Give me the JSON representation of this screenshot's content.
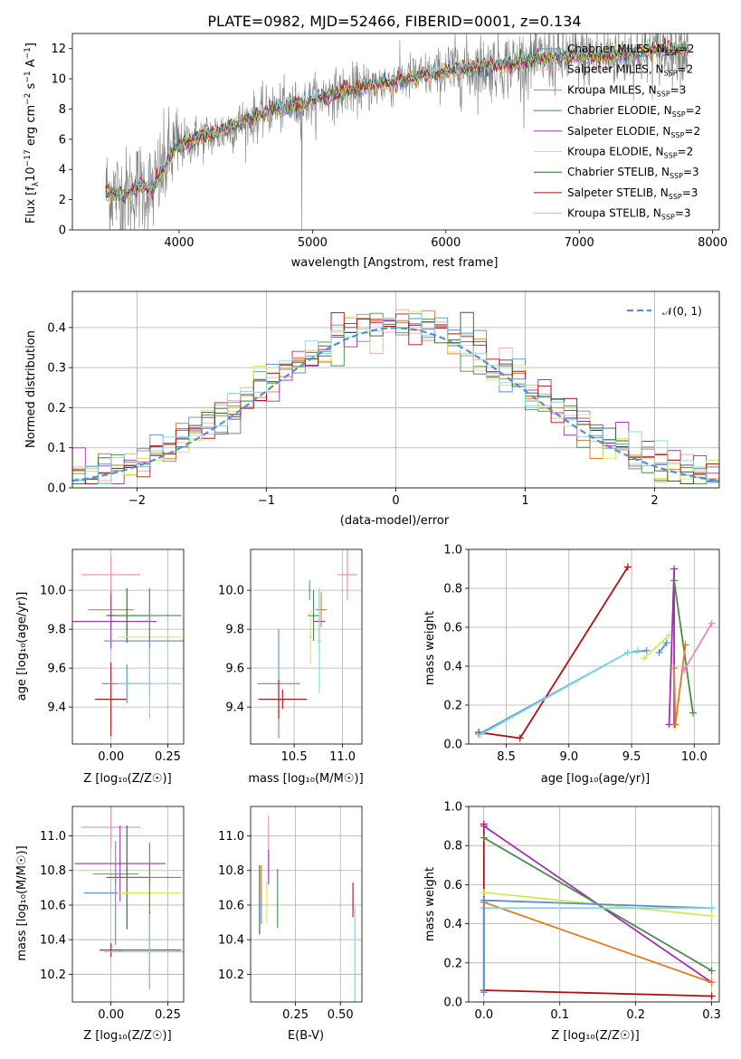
{
  "title": "PLATE=0982, MJD=52466, FIBERID=0001, z=0.134",
  "colors": {
    "observed": "#808080",
    "gaussian": "#5b8bd0",
    "grid": "#b0b0b0",
    "models": [
      "#5b8bd0",
      "#e6b0a0",
      "#e07b20",
      "#4a8a4a",
      "#a030b0",
      "#d4e858",
      "#2e5e2e",
      "#b01010",
      "#80d8e0",
      "#e88ab8"
    ]
  },
  "legend": [
    {
      "label": "Chabrier MILES, N",
      "sub": "SSP",
      "suffix": "=2",
      "color": "#5b8bd0"
    },
    {
      "label": "Salpeter MILES, N",
      "sub": "SSP",
      "suffix": "=2",
      "color": "#e6b0a0"
    },
    {
      "label": "Kroupa MILES, N",
      "sub": "SSP",
      "suffix": "=3",
      "color": "#e07b20"
    },
    {
      "label": "Chabrier ELODIE, N",
      "sub": "SSP",
      "suffix": "=2",
      "color": "#4a8a4a"
    },
    {
      "label": "Salpeter ELODIE, N",
      "sub": "SSP",
      "suffix": "=2",
      "color": "#a030b0"
    },
    {
      "label": "Kroupa ELODIE, N",
      "sub": "SSP",
      "suffix": "=2",
      "color": "#d4e858"
    },
    {
      "label": "Chabrier STELIB, N",
      "sub": "SSP",
      "suffix": "=3",
      "color": "#2e5e2e"
    },
    {
      "label": "Salpeter STELIB, N",
      "sub": "SSP",
      "suffix": "=3",
      "color": "#b01010"
    },
    {
      "label": "Kroupa STELIB, N",
      "sub": "SSP",
      "suffix": "=3",
      "color": "#80d8e0"
    }
  ],
  "chart_data": [
    {
      "type": "line",
      "panel": "spectrum",
      "xlabel": "wavelength [Angstrom, rest frame]",
      "ylabel": "Flux [fλ10⁻¹⁷ erg cm⁻² s⁻¹ A⁻¹]",
      "xlim": [
        3200,
        8050
      ],
      "ylim": [
        0,
        13
      ],
      "xticks": [
        "4000",
        "5000",
        "6000",
        "7000",
        "8000"
      ],
      "yticks": [
        "0",
        "2",
        "4",
        "6",
        "8",
        "10",
        "12"
      ],
      "grid": false,
      "legend_position": "right",
      "continuum": {
        "x": [
          3450,
          3600,
          3700,
          3800,
          3950,
          4100,
          4300,
          4500,
          4700,
          4900,
          5100,
          5300,
          5500,
          5700,
          5900,
          6100,
          6300,
          6500,
          6700,
          6900,
          7100,
          7300,
          7500,
          7700,
          7820
        ],
        "y": [
          2.6,
          2.3,
          2.9,
          2.6,
          5.2,
          6.0,
          6.4,
          7.2,
          8.0,
          8.2,
          8.9,
          9.3,
          9.6,
          10.0,
          10.3,
          10.6,
          10.8,
          11.0,
          11.3,
          11.4,
          11.5,
          11.6,
          11.8,
          12.0,
          12.0
        ]
      }
    },
    {
      "type": "line",
      "panel": "residual_distribution",
      "xlabel": "(data-model)/error",
      "ylabel": "Normed distribution",
      "xlim": [
        -2.5,
        2.5
      ],
      "ylim": [
        0,
        0.49
      ],
      "xticks": [
        "−2",
        "−1",
        "0",
        "1",
        "2"
      ],
      "yticks": [
        "0.0",
        "0.1",
        "0.2",
        "0.3",
        "0.4"
      ],
      "grid": true,
      "legend_position": "top-right",
      "legend_label": "𝒩(0, 1)",
      "gaussian": {
        "mu": 0,
        "sigma": 1
      },
      "hist_edges_start": -2.5,
      "hist_bin": 0.1
    },
    {
      "type": "scatter",
      "panel": "age_vs_Z",
      "xlabel": "Z [log₁₀(Z/Z☉)]",
      "ylabel": "age  [log₁₀(age/yr)]",
      "xlim": [
        -0.17,
        0.32
      ],
      "ylim": [
        9.21,
        10.21
      ],
      "xticks": [
        "0.00",
        "0.25"
      ],
      "xtick_values": [
        0,
        0.25
      ],
      "yticks": [
        "9.4",
        "9.6",
        "9.8",
        "10.0"
      ],
      "ytick_values": [
        9.4,
        9.6,
        9.8,
        10.0
      ],
      "points": [
        {
          "x": 0.0,
          "y": 10.08,
          "xe": 0.13,
          "ye": 0.1,
          "c": 9
        },
        {
          "x": 0.0,
          "y": 9.44,
          "xe": 0.07,
          "ye": 0.19,
          "c": 7
        },
        {
          "x": 0.0,
          "y": 9.9,
          "xe": 0.1,
          "ye": 0.1,
          "c": 2
        },
        {
          "x": 0.0,
          "y": 9.84,
          "xe": 0.2,
          "ye": 0.14,
          "c": 4
        },
        {
          "x": 0.07,
          "y": 9.87,
          "xe": 0.09,
          "ye": 0.14,
          "c": 6
        },
        {
          "x": 0.07,
          "y": 9.52,
          "xe": 0.11,
          "ye": 0.1,
          "c": 0
        },
        {
          "x": 0.17,
          "y": 9.76,
          "xe": 0.14,
          "ye": 0.1,
          "c": 5
        },
        {
          "x": 0.17,
          "y": 9.87,
          "xe": 0.14,
          "ye": 0.14,
          "c": 3
        },
        {
          "x": 0.17,
          "y": 9.74,
          "xe": 0.2,
          "ye": 0.27,
          "c": 0
        },
        {
          "x": 0.17,
          "y": 9.52,
          "xe": 0.14,
          "ye": 0.18,
          "c": 8
        }
      ]
    },
    {
      "type": "scatter",
      "panel": "age_vs_mass",
      "xlabel": "mass [log₁₀(M/M☉)]",
      "ylabel": "",
      "xlim": [
        10.05,
        11.2
      ],
      "ylim": [
        9.21,
        10.21
      ],
      "xticks": [
        "10.5",
        "11.0"
      ],
      "xtick_values": [
        10.5,
        11.0
      ],
      "yticks": [
        "9.4",
        "9.6",
        "9.8",
        "10.0"
      ],
      "ytick_values": [
        9.4,
        9.6,
        9.8,
        10.0
      ],
      "points": [
        {
          "x": 10.34,
          "y": 9.52,
          "xe": 0.22,
          "ye": 0.28,
          "c": 0
        },
        {
          "x": 10.34,
          "y": 9.44,
          "xe": 0.03,
          "ye": 0.1,
          "c": 7
        },
        {
          "x": 10.38,
          "y": 9.44,
          "xe": 0.25,
          "ye": 0.05,
          "c": 7
        },
        {
          "x": 10.66,
          "y": 10.0,
          "xe": 0.01,
          "ye": 0.05,
          "c": 0
        },
        {
          "x": 10.7,
          "y": 9.87,
          "xe": 0.06,
          "ye": 0.13,
          "c": 3
        },
        {
          "x": 10.76,
          "y": 9.84,
          "xe": 0.06,
          "ye": 0.16,
          "c": 4
        },
        {
          "x": 10.78,
          "y": 9.9,
          "xe": 0.06,
          "ye": 0.09,
          "c": 2
        },
        {
          "x": 10.67,
          "y": 9.76,
          "xe": 0.02,
          "ye": 0.14,
          "c": 5
        },
        {
          "x": 10.76,
          "y": 9.74,
          "xe": 0.02,
          "ye": 0.27,
          "c": 8
        },
        {
          "x": 11.05,
          "y": 10.08,
          "xe": 0.1,
          "ye": 0.13,
          "c": 9
        }
      ]
    },
    {
      "type": "line",
      "panel": "mass_weight_vs_age",
      "xlabel": "age  [log₁₀(age/yr)]",
      "ylabel": "mass weight",
      "xlim": [
        8.2,
        10.2
      ],
      "ylim": [
        0,
        1.0
      ],
      "xticks": [
        "8.5",
        "9.0",
        "9.5",
        "10.0"
      ],
      "xtick_values": [
        8.5,
        9.0,
        9.5,
        10.0
      ],
      "yticks": [
        "0.0",
        "0.2",
        "0.4",
        "0.6",
        "0.8",
        "1.0"
      ],
      "ytick_values": [
        0,
        0.2,
        0.4,
        0.6,
        0.8,
        1.0
      ],
      "grid": true,
      "series": [
        {
          "c": 7,
          "x": [
            8.28,
            8.61,
            9.47
          ],
          "y": [
            0.06,
            0.03,
            0.91
          ]
        },
        {
          "c": 0,
          "x": [
            8.28,
            9.47,
            9.62
          ],
          "y": [
            0.05,
            0.47,
            0.48
          ]
        },
        {
          "c": 8,
          "x": [
            8.3,
            9.47,
            9.55
          ],
          "y": [
            0.05,
            0.47,
            0.48
          ]
        },
        {
          "c": 5,
          "x": [
            9.6,
            9.8
          ],
          "y": [
            0.44,
            0.56
          ]
        },
        {
          "c": 0,
          "x": [
            9.72,
            9.78
          ],
          "y": [
            0.47,
            0.52
          ]
        },
        {
          "c": 4,
          "x": [
            9.8,
            9.84,
            9.84
          ],
          "y": [
            0.1,
            0.9,
            0.1
          ]
        },
        {
          "c": 3,
          "x": [
            9.84,
            9.99
          ],
          "y": [
            0.84,
            0.16
          ]
        },
        {
          "c": 2,
          "x": [
            9.84,
            9.85,
            9.93
          ],
          "y": [
            0.39,
            0.1,
            0.51
          ]
        },
        {
          "c": 9,
          "x": [
            9.92,
            10.14
          ],
          "y": [
            0.38,
            0.62
          ]
        }
      ]
    },
    {
      "type": "scatter",
      "panel": "mass_vs_Z",
      "xlabel": "Z [log₁₀(Z/Z☉)]",
      "ylabel": "mass [log₁₀(M/M☉)]",
      "xlim": [
        -0.17,
        0.32
      ],
      "ylim": [
        10.04,
        11.17
      ],
      "xticks": [
        "0.00",
        "0.25"
      ],
      "xtick_values": [
        0,
        0.25
      ],
      "yticks": [
        "10.2",
        "10.4",
        "10.6",
        "10.8",
        "11.0"
      ],
      "ytick_values": [
        10.2,
        10.4,
        10.6,
        10.8,
        11.0
      ],
      "points": [
        {
          "x": 0.0,
          "y": 11.05,
          "xe": 0.13,
          "ye": 0.12,
          "c": 9
        },
        {
          "x": 0.0,
          "y": 10.34,
          "xe": 0.05,
          "ye": 0.04,
          "c": 7
        },
        {
          "x": 0.02,
          "y": 10.78,
          "xe": 0.1,
          "ye": 0.06,
          "c": 2
        },
        {
          "x": 0.04,
          "y": 10.84,
          "xe": 0.2,
          "ye": 0.22,
          "c": 4
        },
        {
          "x": 0.07,
          "y": 10.76,
          "xe": 0.09,
          "ye": 0.3,
          "c": 6
        },
        {
          "x": 0.02,
          "y": 10.67,
          "xe": 0.14,
          "ye": 0.3,
          "c": 0
        },
        {
          "x": 0.17,
          "y": 10.67,
          "xe": 0.14,
          "ye": 0.17,
          "c": 5
        },
        {
          "x": 0.17,
          "y": 10.76,
          "xe": 0.14,
          "ye": 0.2,
          "c": 3
        },
        {
          "x": 0.17,
          "y": 10.34,
          "xe": 0.14,
          "ye": 0.22,
          "c": 6
        },
        {
          "x": 0.17,
          "y": 10.33,
          "xe": 0.2,
          "ye": 0.22,
          "c": 8
        }
      ]
    },
    {
      "type": "scatter",
      "panel": "mass_vs_EBV",
      "xlabel": "E(B-V)",
      "ylabel": "",
      "xlim": [
        0.0,
        0.62
      ],
      "ylim": [
        10.04,
        11.17
      ],
      "xticks": [
        "0.25",
        "0.50"
      ],
      "xtick_values": [
        0.25,
        0.5
      ],
      "yticks": [
        "10.2",
        "10.4",
        "10.6",
        "10.8",
        "11.0"
      ],
      "ytick_values": [
        10.2,
        10.4,
        10.6,
        10.8,
        11.0
      ],
      "points": [
        {
          "x": 0.05,
          "y": 10.63,
          "xe": 0,
          "ye": 0.2,
          "c": 6
        },
        {
          "x": 0.06,
          "y": 10.62,
          "xe": 0,
          "ye": 0.13,
          "c": 0
        },
        {
          "x": 0.06,
          "y": 10.73,
          "xe": 0,
          "ye": 0.1,
          "c": 2
        },
        {
          "x": 0.09,
          "y": 10.62,
          "xe": 0,
          "ye": 0.12,
          "c": 5
        },
        {
          "x": 0.1,
          "y": 10.95,
          "xe": 0,
          "ye": 0.17,
          "c": 9
        },
        {
          "x": 0.1,
          "y": 10.82,
          "xe": 0,
          "ye": 0.1,
          "c": 4
        },
        {
          "x": 0.15,
          "y": 10.64,
          "xe": 0,
          "ye": 0.17,
          "c": 3
        },
        {
          "x": 0.57,
          "y": 10.63,
          "xe": 0,
          "ye": 0.1,
          "c": 7
        },
        {
          "x": 0.58,
          "y": 10.3,
          "xe": 0,
          "ye": 0.3,
          "c": 0
        },
        {
          "x": 0.58,
          "y": 10.3,
          "xe": 0,
          "ye": 0.3,
          "c": 8
        }
      ]
    },
    {
      "type": "line",
      "panel": "mass_weight_vs_Z",
      "xlabel": "Z [log₁₀(Z/Z☉)]",
      "ylabel": "mass weight",
      "xlim": [
        -0.02,
        0.31
      ],
      "ylim": [
        0,
        1.0
      ],
      "xticks": [
        "0.0",
        "0.1",
        "0.2",
        "0.3"
      ],
      "xtick_values": [
        0,
        0.1,
        0.2,
        0.3
      ],
      "yticks": [
        "0.0",
        "0.2",
        "0.4",
        "0.6",
        "0.8",
        "1.0"
      ],
      "ytick_values": [
        0,
        0.2,
        0.4,
        0.6,
        0.8,
        1.0
      ],
      "grid": true,
      "series": [
        {
          "c": 7,
          "x": [
            0,
            0.3
          ],
          "y": [
            0.06,
            0.03
          ]
        },
        {
          "c": 7,
          "x": [
            0,
            0
          ],
          "y": [
            0.06,
            0.91
          ]
        },
        {
          "c": 4,
          "x": [
            0,
            0.3
          ],
          "y": [
            0.9,
            0.1
          ]
        },
        {
          "c": 3,
          "x": [
            0,
            0.3
          ],
          "y": [
            0.84,
            0.16
          ]
        },
        {
          "c": 5,
          "x": [
            0,
            0.3
          ],
          "y": [
            0.56,
            0.44
          ]
        },
        {
          "c": 0,
          "x": [
            0,
            0.3
          ],
          "y": [
            0.52,
            0.48
          ]
        },
        {
          "c": 2,
          "x": [
            0,
            0.3
          ],
          "y": [
            0.51,
            0.1
          ]
        },
        {
          "c": 8,
          "x": [
            0,
            0.3
          ],
          "y": [
            0.48,
            0.48
          ]
        },
        {
          "c": 8,
          "x": [
            0,
            0
          ],
          "y": [
            0.05,
            0.48
          ]
        },
        {
          "c": 0,
          "x": [
            0,
            0
          ],
          "y": [
            0.05,
            0.52
          ]
        }
      ]
    }
  ]
}
